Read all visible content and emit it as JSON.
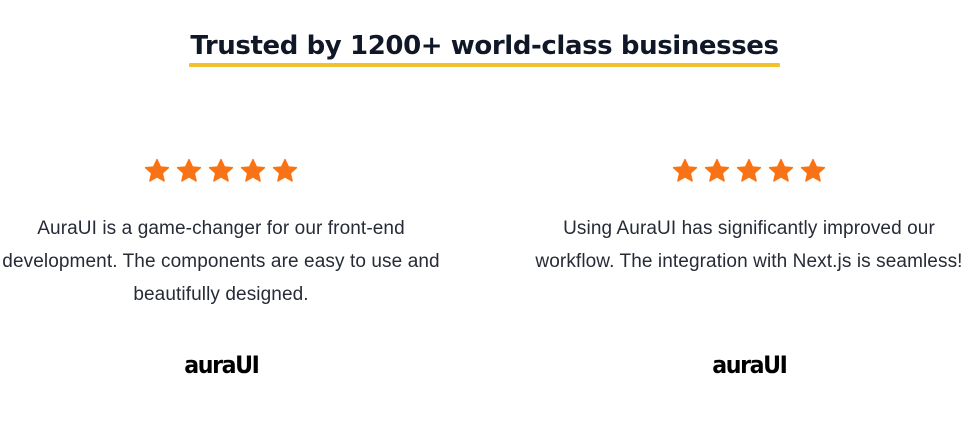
{
  "section": {
    "headline": "Trusted by 1200+ world-class businesses"
  },
  "colors": {
    "star": "#f97316",
    "underline": "#f2c12e",
    "heading": "#101828",
    "body_text": "#262b36"
  },
  "testimonials": [
    {
      "rating": 5,
      "rating_max": 5,
      "quote": "AuraUI is a game-changer for our front-end development. The components are easy to use and beautifully designed.",
      "logo_text": "auraUI",
      "logo_icon": "auraui-wordmark-logo"
    },
    {
      "rating": 5,
      "rating_max": 5,
      "quote": "Using AuraUI has significantly improved our workflow. The integration with Next.js is seamless!",
      "logo_text": "auraUI",
      "logo_icon": "auraui-wordmark-logo"
    }
  ]
}
